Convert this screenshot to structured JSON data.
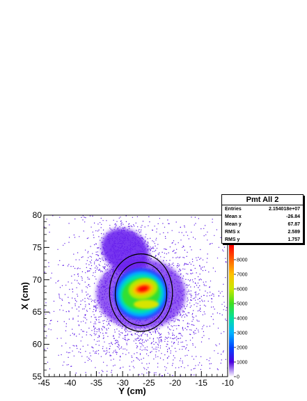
{
  "chart_data": {
    "type": "heatmap",
    "title": "",
    "xlabel": "Y (cm)",
    "ylabel": "X (cm)",
    "xlim": [
      -45,
      -10
    ],
    "ylim": [
      55,
      80
    ],
    "x_ticks": [
      -45,
      -40,
      -35,
      -30,
      -25,
      -20,
      -15,
      -10
    ],
    "y_ticks": [
      55,
      60,
      65,
      70,
      75,
      80
    ],
    "colorbar": {
      "range": [
        0,
        9000
      ],
      "ticks": [
        0,
        1000,
        2000,
        3000,
        4000,
        5000,
        6000,
        7000,
        8000
      ],
      "palette": [
        "#ffffff",
        "#4b00e0",
        "#0044ff",
        "#00b4ff",
        "#00e0a0",
        "#40e020",
        "#c8e800",
        "#ffc000",
        "#ff6000",
        "#ff0000"
      ]
    },
    "hot_spot": {
      "x": -26.5,
      "y": 68.5,
      "peak": 8500
    },
    "circles": [
      {
        "center_x": -26.5,
        "center_y": 68,
        "radius": 6.0
      },
      {
        "center_x": -26.5,
        "center_y": 67.8,
        "radius": 4.9
      }
    ],
    "grid": false,
    "legend": "top-right"
  },
  "stats": {
    "title": "Pmt All 2",
    "rows": [
      {
        "label": "Entries",
        "value": "2.154018e+07"
      },
      {
        "label": "Mean x",
        "value": "-26.84"
      },
      {
        "label": "Mean y",
        "value": "67.87"
      },
      {
        "label": "RMS x",
        "value": "2.589"
      },
      {
        "label": "RMS y",
        "value": "1.757"
      }
    ]
  }
}
